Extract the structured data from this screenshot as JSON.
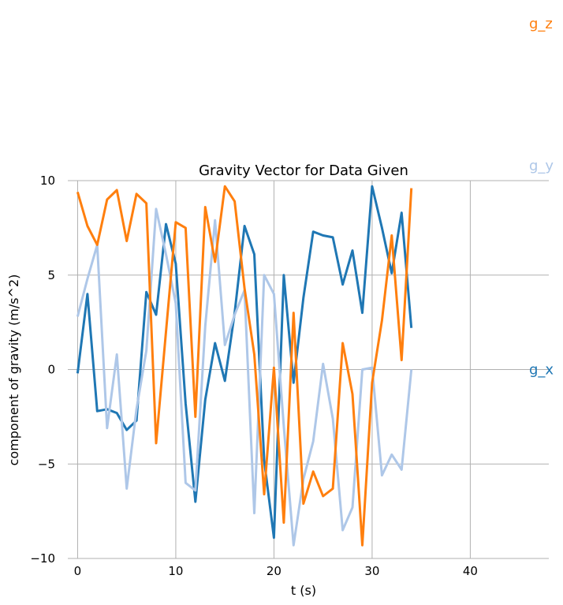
{
  "chart_data": {
    "type": "line",
    "title": "Gravity Vector for Data Given",
    "xlabel": "t (s)",
    "ylabel": "component of gravity (m/s^2)",
    "xlim": [
      -1,
      48
    ],
    "ylim": [
      -10,
      10
    ],
    "xticks": [
      0,
      10,
      20,
      30,
      40
    ],
    "yticks": [
      -10,
      -5,
      0,
      5,
      10
    ],
    "grid": true,
    "legend": "direct labels at right",
    "x": [
      0,
      1,
      2,
      3,
      4,
      5,
      6,
      7,
      8,
      9,
      10,
      11,
      12,
      13,
      14,
      15,
      16,
      17,
      18,
      19,
      20,
      21,
      22,
      23,
      24,
      25,
      26,
      27,
      28,
      29,
      30,
      31,
      32,
      33,
      34
    ],
    "series": [
      {
        "name": "g_x",
        "color": "#1f77b4",
        "values": [
          -0.2,
          4.0,
          -2.2,
          -2.1,
          -2.3,
          -3.2,
          -2.7,
          4.1,
          2.9,
          7.7,
          5.6,
          -1.8,
          -7.0,
          -1.6,
          1.4,
          -0.6,
          3.0,
          7.6,
          6.1,
          -4.8,
          -8.9,
          5.0,
          -0.7,
          3.8,
          7.3,
          7.1,
          7.0,
          4.5,
          6.3,
          3.0,
          9.7,
          7.5,
          5.1,
          8.3,
          2.2
        ]
      },
      {
        "name": "g_y",
        "color": "#aec7e8",
        "values": [
          2.8,
          4.8,
          6.6,
          -3.1,
          0.8,
          -6.3,
          -2.1,
          1.0,
          8.5,
          6.1,
          3.5,
          -6.0,
          -6.4,
          2.3,
          7.9,
          1.3,
          2.9,
          4.2,
          -7.6,
          5.0,
          4.0,
          -3.0,
          -9.3,
          -5.8,
          -3.8,
          0.3,
          -2.6,
          -8.5,
          -7.3,
          0.0,
          0.1,
          -5.6,
          -4.5,
          -5.3,
          0.0
        ]
      },
      {
        "name": "g_z",
        "color": "#ff7f0e",
        "values": [
          9.4,
          7.6,
          6.6,
          9.0,
          9.5,
          6.8,
          9.3,
          8.8,
          -3.9,
          2.0,
          7.8,
          7.5,
          -2.5,
          8.6,
          5.7,
          9.7,
          8.9,
          4.3,
          0.8,
          -6.6,
          0.1,
          -8.1,
          3.0,
          -7.1,
          -5.4,
          -6.7,
          -6.3,
          1.4,
          -1.3,
          -9.3,
          -0.7,
          2.6,
          7.1,
          0.5,
          9.6
        ]
      }
    ],
    "series_label_y": [
      0,
      10.8,
      18.3
    ]
  }
}
